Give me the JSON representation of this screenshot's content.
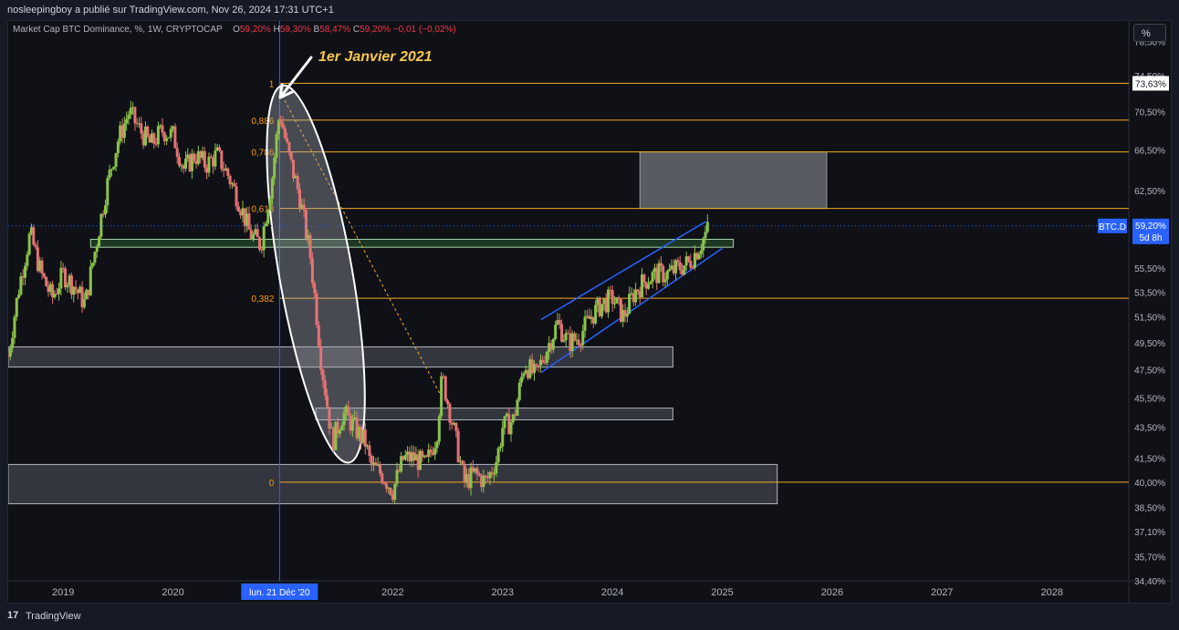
{
  "header": {
    "publisher_line": "nosleepingboy a publié sur TradingView.com, Nov 26, 2024 17:31 UTC+1"
  },
  "legend": {
    "title": "Market Cap BTC Dominance, %, 1W, CRYPTOCAP",
    "o_label": "O",
    "o_value": "59,20%",
    "h_label": "H",
    "h_value": "59,30%",
    "b_label": "B",
    "b_value": "58,47%",
    "c_label": "C",
    "c_value": "59,20%",
    "change": "−0,01 (−0,02%)"
  },
  "unit_button": "%",
  "annotation": "1er Janvier 2021",
  "footer": {
    "brand": "TradingView",
    "logo_glyph": "17"
  },
  "colors": {
    "background": "#0f1117",
    "up": "#26a69a",
    "up_body": "#8bc34a",
    "down": "#ef5350",
    "down_body": "#e57373",
    "fib": "#f9a825",
    "fib_text": "#ff9800",
    "channel": "#2962ff",
    "zone_fill": "#787b86",
    "green_zone": "#4caf50",
    "price_tag": "#2962ff"
  },
  "chart_data": {
    "type": "candlestick",
    "symbol_tag": "BTC.D",
    "last_price_label": "59,20%",
    "countdown_label": "5d 8h",
    "top_price_label": "73,63%",
    "crosshair_date_label": "lun. 21 Déc '20",
    "xlim": [
      2018.5,
      2028.7
    ],
    "ylim": [
      34.4,
      81.0
    ],
    "y_scale": "log",
    "y_tick_labels": [
      "78,50%",
      "74,50%",
      "70,50%",
      "66,50%",
      "62,50%",
      "59,20%",
      "55,50%",
      "53,50%",
      "51,50%",
      "49,50%",
      "47,50%",
      "45,50%",
      "43,50%",
      "41,50%",
      "40,00%",
      "38,50%",
      "37,10%",
      "35,70%",
      "34,40%"
    ],
    "y_tick_values": [
      78.5,
      74.5,
      70.5,
      66.5,
      62.5,
      59.2,
      55.5,
      53.5,
      51.5,
      49.5,
      47.5,
      45.5,
      43.5,
      41.5,
      40.0,
      38.5,
      37.1,
      35.7,
      34.4
    ],
    "x_tick_labels": [
      "2019",
      "2020",
      "2022",
      "2023",
      "2024",
      "2025",
      "2026",
      "2027",
      "2028"
    ],
    "x_tick_values": [
      2019,
      2020,
      2022,
      2023,
      2024,
      2025,
      2026,
      2027,
      2028
    ],
    "crosshair_x": 2020.97,
    "price_path": [
      [
        2018.5,
        48.5
      ],
      [
        2018.6,
        54.0
      ],
      [
        2018.7,
        58.5
      ],
      [
        2018.8,
        55.0
      ],
      [
        2018.9,
        53.0
      ],
      [
        2019.0,
        55.0
      ],
      [
        2019.1,
        54.0
      ],
      [
        2019.2,
        52.5
      ],
      [
        2019.3,
        57.5
      ],
      [
        2019.4,
        63.0
      ],
      [
        2019.5,
        67.5
      ],
      [
        2019.6,
        70.5
      ],
      [
        2019.7,
        68.5
      ],
      [
        2019.8,
        67.0
      ],
      [
        2019.9,
        68.5
      ],
      [
        2020.0,
        68.0
      ],
      [
        2020.1,
        64.5
      ],
      [
        2020.2,
        66.0
      ],
      [
        2020.3,
        65.0
      ],
      [
        2020.4,
        66.0
      ],
      [
        2020.5,
        64.0
      ],
      [
        2020.6,
        61.5
      ],
      [
        2020.7,
        58.5
      ],
      [
        2020.8,
        57.5
      ],
      [
        2020.9,
        63.5
      ],
      [
        2020.97,
        70.5
      ],
      [
        2021.05,
        66.0
      ],
      [
        2021.15,
        62.0
      ],
      [
        2021.25,
        56.5
      ],
      [
        2021.35,
        48.0
      ],
      [
        2021.45,
        42.5
      ],
      [
        2021.55,
        44.5
      ],
      [
        2021.65,
        43.5
      ],
      [
        2021.75,
        42.5
      ],
      [
        2021.8,
        41.0
      ],
      [
        2021.9,
        40.5
      ],
      [
        2022.0,
        39.5
      ],
      [
        2022.1,
        41.5
      ],
      [
        2022.2,
        41.5
      ],
      [
        2022.3,
        41.0
      ],
      [
        2022.4,
        43.0
      ],
      [
        2022.45,
        47.0
      ],
      [
        2022.55,
        43.5
      ],
      [
        2022.65,
        40.0
      ],
      [
        2022.75,
        40.5
      ],
      [
        2022.85,
        40.0
      ],
      [
        2022.95,
        41.5
      ],
      [
        2023.0,
        43.5
      ],
      [
        2023.1,
        44.0
      ],
      [
        2023.2,
        48.0
      ],
      [
        2023.3,
        47.0
      ],
      [
        2023.4,
        49.0
      ],
      [
        2023.5,
        51.0
      ],
      [
        2023.6,
        49.5
      ],
      [
        2023.7,
        50.0
      ],
      [
        2023.8,
        51.5
      ],
      [
        2023.9,
        52.5
      ],
      [
        2024.0,
        53.0
      ],
      [
        2024.1,
        51.5
      ],
      [
        2024.2,
        53.5
      ],
      [
        2024.3,
        54.5
      ],
      [
        2024.4,
        55.0
      ],
      [
        2024.5,
        55.0
      ],
      [
        2024.6,
        55.5
      ],
      [
        2024.7,
        56.0
      ],
      [
        2024.8,
        57.5
      ],
      [
        2024.88,
        59.2
      ]
    ],
    "fib_levels": [
      {
        "label": "1",
        "value": 73.63
      },
      {
        "label": "0,886",
        "value": 69.6
      },
      {
        "label": "0,786",
        "value": 66.3
      },
      {
        "label": "0,618",
        "value": 60.8
      },
      {
        "label": "0,382",
        "value": 53.0
      },
      {
        "label": "0",
        "value": 40.0
      }
    ],
    "fib_x_start": 2020.97,
    "zones": [
      {
        "kind": "gray",
        "x0": 2018.5,
        "x1": 2024.55,
        "y0": 47.7,
        "y1": 49.2
      },
      {
        "kind": "gray",
        "x0": 2021.3,
        "x1": 2024.55,
        "y0": 44.0,
        "y1": 44.8
      },
      {
        "kind": "gray",
        "x0": 2018.5,
        "x1": 2025.5,
        "y0": 38.7,
        "y1": 41.1
      },
      {
        "kind": "gray-light",
        "x0": 2024.25,
        "x1": 2025.95,
        "y0": 60.8,
        "y1": 66.3
      },
      {
        "kind": "green",
        "x0": 2019.25,
        "x1": 2025.1,
        "y0": 57.3,
        "y1": 58.0
      }
    ],
    "channel_lines": [
      {
        "x0": 2023.35,
        "y0": 51.3,
        "x1": 2024.85,
        "y1": 59.6
      },
      {
        "x0": 2023.35,
        "y0": 47.3,
        "x1": 2025.0,
        "y1": 57.2
      }
    ],
    "trend_dashed": {
      "x0": 2020.97,
      "y0": 72.8,
      "x1": 2022.45,
      "y1": 45.5
    },
    "ellipse": {
      "cx": 2021.3,
      "cy_pct": 55.0
    }
  }
}
